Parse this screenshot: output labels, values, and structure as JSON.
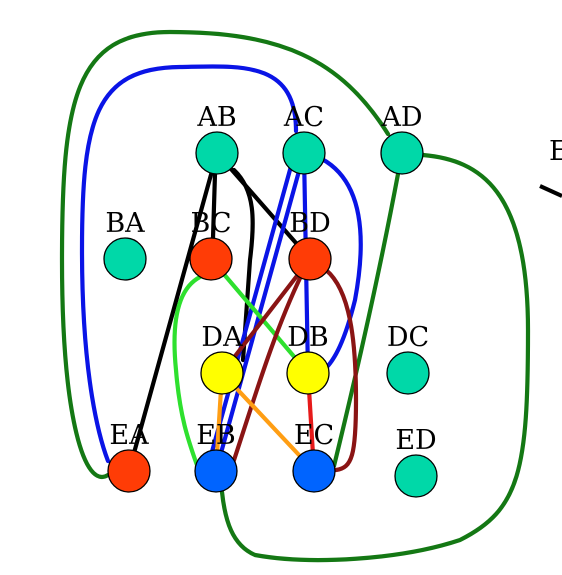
{
  "colors": {
    "teal": "#00d8a8",
    "red": "#ff3c06",
    "yellow": "#ffff00",
    "blue": "#0064ff",
    "black": "#000000",
    "dark_blue": "#0a14e6",
    "green": "#147814",
    "light_green": "#2ee02e",
    "orange": "#ff9e14",
    "dark_red": "#8a1414",
    "edge_red": "#e61a1a"
  },
  "nodes": [
    {
      "id": "AB",
      "label": "AB",
      "color": "#00d8a8"
    },
    {
      "id": "AC",
      "label": "AC",
      "color": "#00d8a8"
    },
    {
      "id": "AD",
      "label": "AD",
      "color": "#00d8a8"
    },
    {
      "id": "BA",
      "label": "BA",
      "color": "#00d8a8"
    },
    {
      "id": "BC",
      "label": "BC",
      "color": "#ff3c06"
    },
    {
      "id": "BD",
      "label": "BD",
      "color": "#ff3c06"
    },
    {
      "id": "DA",
      "label": "DA",
      "color": "#ffff00"
    },
    {
      "id": "DB",
      "label": "DB",
      "color": "#ffff00"
    },
    {
      "id": "DC",
      "label": "DC",
      "color": "#00d8a8"
    },
    {
      "id": "EA",
      "label": "EA",
      "color": "#ff3c06"
    },
    {
      "id": "EB",
      "label": "EB",
      "color": "#0064ff"
    },
    {
      "id": "EC",
      "label": "EC",
      "color": "#0064ff"
    },
    {
      "id": "ED",
      "label": "ED",
      "color": "#00d8a8"
    }
  ],
  "edges": [
    {
      "from": "AB",
      "to": "EA",
      "color": "#000000"
    },
    {
      "from": "AB",
      "to": "BC",
      "color": "#000000"
    },
    {
      "from": "AB",
      "to": "BD",
      "color": "#000000"
    },
    {
      "from": "AB",
      "to": "DA",
      "color": "#000000"
    },
    {
      "from": "AB",
      "to": "EA",
      "color": "#0a14e6"
    },
    {
      "from": "AC",
      "to": "EA",
      "color": "#147814"
    },
    {
      "from": "AC",
      "to": "EB",
      "color": "#0a14e6"
    },
    {
      "from": "AC",
      "to": "EB",
      "color": "#0a14e6"
    },
    {
      "from": "AC",
      "to": "BD",
      "color": "#0a14e6"
    },
    {
      "from": "AC",
      "to": "DB",
      "color": "#0a14e6"
    },
    {
      "from": "AD",
      "to": "EC",
      "color": "#147814"
    },
    {
      "from": "AD",
      "to": "EB",
      "color": "#147814"
    },
    {
      "from": "BC",
      "to": "EB",
      "color": "#2ee02e"
    },
    {
      "from": "BC",
      "to": "DB",
      "color": "#2ee02e"
    },
    {
      "from": "BD",
      "to": "DA",
      "color": "#8a1414"
    },
    {
      "from": "BD",
      "to": "EB",
      "color": "#8a1414"
    },
    {
      "from": "BD",
      "to": "EC",
      "color": "#8a1414"
    },
    {
      "from": "DA",
      "to": "EB",
      "color": "#ff9e14"
    },
    {
      "from": "DA",
      "to": "EC",
      "color": "#ff9e14"
    },
    {
      "from": "DB",
      "to": "EC",
      "color": "#e61a1a"
    }
  ],
  "clipped_label": "E"
}
